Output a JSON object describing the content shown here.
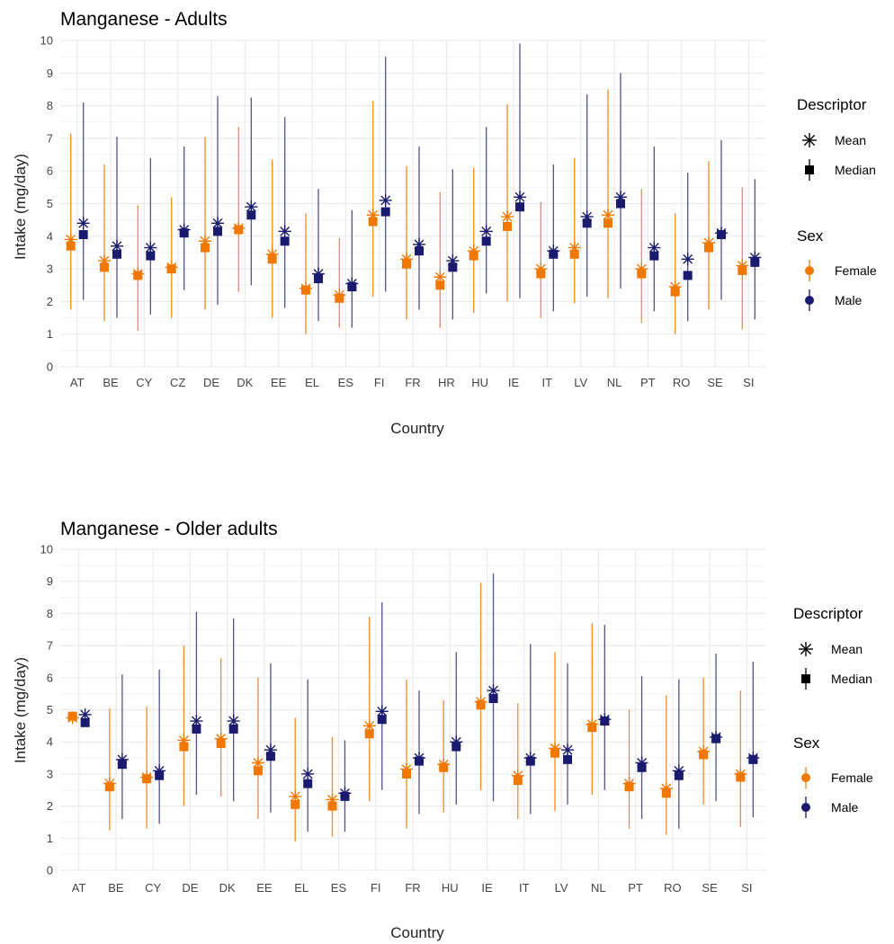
{
  "colors": {
    "female": "#f07800",
    "male": "#1a1a6e",
    "grid": "#ebebeb"
  },
  "legend": {
    "descriptor_title": "Descriptor",
    "descriptor_items": [
      "Mean",
      "Median"
    ],
    "sex_title": "Sex",
    "sex_items": [
      "Female",
      "Male"
    ]
  },
  "chart_data": [
    {
      "type": "scatter",
      "title": "Manganese - Adults",
      "xlabel": "Country",
      "ylabel": "Intake (mg/day)",
      "ylim": [
        0,
        10
      ],
      "yticks": [
        "0",
        "1",
        "2",
        "3",
        "4",
        "5",
        "6",
        "7",
        "8",
        "9",
        "10"
      ],
      "grid": true,
      "legend_position": "right",
      "categories": [
        "AT",
        "BE",
        "CY",
        "CZ",
        "DE",
        "DK",
        "EE",
        "EL",
        "ES",
        "FI",
        "FR",
        "HR",
        "HU",
        "IE",
        "IT",
        "LV",
        "NL",
        "PT",
        "RO",
        "SE",
        "SI"
      ],
      "series": [
        {
          "name": "Female",
          "mean": [
            3.9,
            3.25,
            2.85,
            3.05,
            3.85,
            4.25,
            3.45,
            2.4,
            2.2,
            4.65,
            3.3,
            2.75,
            3.55,
            4.6,
            3.0,
            3.65,
            4.65,
            3.0,
            2.45,
            3.8,
            3.1
          ],
          "median": [
            3.7,
            3.05,
            2.8,
            3.0,
            3.65,
            4.2,
            3.3,
            2.35,
            2.1,
            4.45,
            3.15,
            2.5,
            3.4,
            4.3,
            2.85,
            3.45,
            4.4,
            2.85,
            2.3,
            3.65,
            2.95
          ],
          "low": [
            1.75,
            1.4,
            1.1,
            1.5,
            1.75,
            2.3,
            1.5,
            1.0,
            1.2,
            2.15,
            1.45,
            1.2,
            1.65,
            2.0,
            1.5,
            1.95,
            2.1,
            1.35,
            1.0,
            1.75,
            1.15
          ],
          "high": [
            7.15,
            6.2,
            4.95,
            5.2,
            7.05,
            7.35,
            6.35,
            4.7,
            3.95,
            8.15,
            6.15,
            5.35,
            6.1,
            8.05,
            5.05,
            6.4,
            8.5,
            5.45,
            4.7,
            6.3,
            5.5
          ]
        },
        {
          "name": "Male",
          "mean": [
            4.4,
            3.7,
            3.65,
            4.2,
            4.4,
            4.9,
            4.15,
            2.85,
            2.55,
            5.1,
            3.75,
            3.25,
            4.15,
            5.2,
            3.55,
            4.6,
            5.2,
            3.65,
            3.3,
            4.1,
            3.35
          ],
          "median": [
            4.05,
            3.45,
            3.4,
            4.1,
            4.15,
            4.65,
            3.85,
            2.7,
            2.45,
            4.75,
            3.55,
            3.05,
            3.85,
            4.9,
            3.45,
            4.4,
            5.0,
            3.4,
            2.8,
            4.05,
            3.2
          ],
          "low": [
            2.05,
            1.5,
            1.6,
            2.35,
            1.9,
            2.5,
            1.8,
            1.4,
            1.2,
            2.3,
            1.75,
            1.45,
            2.25,
            2.1,
            1.7,
            2.15,
            2.4,
            1.7,
            1.4,
            2.05,
            1.45
          ],
          "high": [
            8.1,
            7.05,
            6.4,
            6.75,
            8.3,
            8.25,
            7.65,
            5.45,
            4.8,
            9.5,
            6.75,
            6.05,
            7.35,
            9.9,
            6.2,
            8.35,
            9.0,
            6.75,
            5.95,
            6.95,
            5.75
          ]
        }
      ]
    },
    {
      "type": "scatter",
      "title": "Manganese - Older adults",
      "xlabel": "Country",
      "ylabel": "Intake (mg/day)",
      "ylim": [
        0,
        10
      ],
      "yticks": [
        "0",
        "1",
        "2",
        "3",
        "4",
        "5",
        "6",
        "7",
        "8",
        "9",
        "10"
      ],
      "grid": true,
      "legend_position": "right",
      "categories": [
        "AT",
        "BE",
        "CY",
        "DE",
        "DK",
        "EE",
        "EL",
        "ES",
        "FI",
        "FR",
        "HU",
        "IE",
        "IT",
        "LV",
        "NL",
        "PT",
        "RO",
        "SE",
        "SI"
      ],
      "series": [
        {
          "name": "Female",
          "mean": [
            4.75,
            2.7,
            2.9,
            4.05,
            4.1,
            3.35,
            2.3,
            2.2,
            4.5,
            3.15,
            3.3,
            5.25,
            2.95,
            3.8,
            4.55,
            2.7,
            2.55,
            3.7,
            3.0
          ],
          "median": [
            4.8,
            2.6,
            2.85,
            3.85,
            3.95,
            3.1,
            2.05,
            2.0,
            4.25,
            3.0,
            3.2,
            5.15,
            2.8,
            3.65,
            4.45,
            2.6,
            2.4,
            3.6,
            2.9
          ],
          "low": [
            null,
            1.25,
            1.3,
            2.0,
            2.3,
            1.6,
            0.9,
            1.05,
            2.15,
            1.3,
            1.8,
            2.5,
            1.6,
            1.85,
            2.35,
            1.3,
            1.1,
            2.05,
            1.35
          ],
          "high": [
            null,
            5.05,
            5.1,
            7.0,
            6.6,
            6.0,
            4.75,
            4.15,
            7.9,
            5.95,
            5.3,
            8.95,
            5.2,
            6.8,
            7.7,
            5.0,
            5.45,
            6.0,
            5.6
          ]
        },
        {
          "name": "Male",
          "mean": [
            4.85,
            3.45,
            3.1,
            4.65,
            4.65,
            3.75,
            3.0,
            2.4,
            4.95,
            3.5,
            4.0,
            5.6,
            3.5,
            3.75,
            4.7,
            3.35,
            3.1,
            4.15,
            3.5
          ],
          "median": [
            4.6,
            3.3,
            2.95,
            4.4,
            4.4,
            3.55,
            2.7,
            2.3,
            4.7,
            3.4,
            3.85,
            5.35,
            3.4,
            3.45,
            4.65,
            3.2,
            2.95,
            4.1,
            3.45
          ],
          "low": [
            null,
            1.6,
            1.45,
            2.35,
            2.15,
            1.8,
            1.2,
            1.2,
            2.5,
            1.75,
            2.05,
            2.15,
            1.75,
            2.05,
            2.5,
            1.6,
            1.3,
            2.15,
            1.65
          ],
          "high": [
            null,
            6.1,
            6.25,
            8.05,
            7.85,
            6.45,
            5.95,
            4.05,
            8.35,
            5.6,
            6.8,
            9.25,
            7.05,
            6.45,
            7.65,
            6.05,
            5.95,
            6.75,
            6.5
          ]
        }
      ]
    }
  ]
}
